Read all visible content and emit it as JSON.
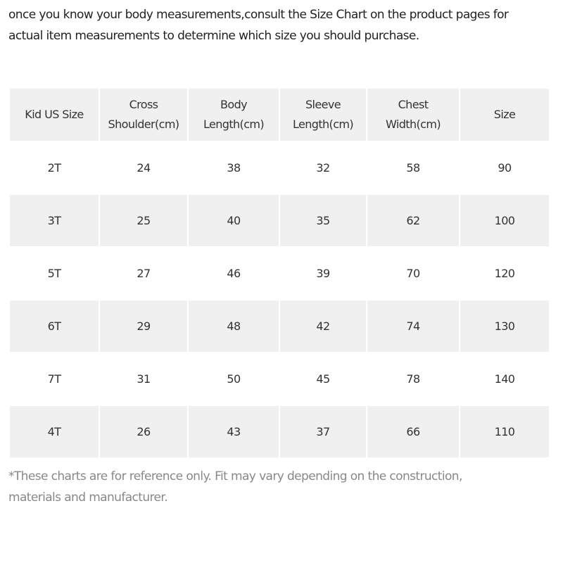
{
  "intro": "once you know your body measurements,consult the Size Chart on the product pages for actual item measurements to determine which size you should purchase.",
  "table": {
    "headers": [
      "Kid US Size",
      "Cross Shoulder(cm)",
      "Body Length(cm)",
      "Sleeve Length(cm)",
      "Chest Width(cm)",
      "Size"
    ],
    "rows": [
      [
        "2T",
        24,
        38,
        32,
        58,
        90
      ],
      [
        "3T",
        25,
        40,
        35,
        62,
        100
      ],
      [
        "5T",
        27,
        46,
        39,
        70,
        120
      ],
      [
        "6T",
        29,
        48,
        42,
        74,
        130
      ],
      [
        "7T",
        31,
        50,
        45,
        78,
        140
      ],
      [
        "4T",
        26,
        43,
        37,
        66,
        110
      ]
    ]
  },
  "footnote": "*These charts are for reference only. Fit may vary depending on the construction, materials and manufacturer."
}
